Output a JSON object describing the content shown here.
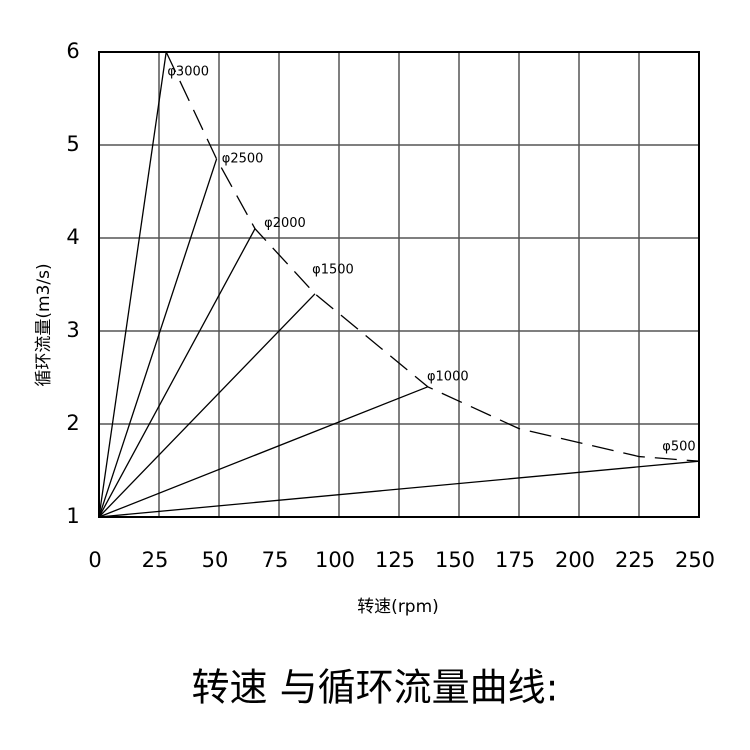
{
  "chart_data": {
    "type": "line",
    "title": "转速 与循环流量曲线:",
    "xlabel": "转速(rpm)",
    "ylabel": "循环流量(m3/s)",
    "xlim": [
      0,
      250
    ],
    "ylim": [
      1,
      6
    ],
    "xticks": [
      0,
      25,
      50,
      75,
      100,
      125,
      150,
      175,
      200,
      225,
      250
    ],
    "yticks": [
      1,
      2,
      3,
      4,
      5,
      6
    ],
    "grid": true,
    "color": "#000000",
    "series": [
      {
        "name": "φ3000",
        "x": [
          0,
          28
        ],
        "values": [
          1,
          6
        ]
      },
      {
        "name": "φ2500",
        "x": [
          0,
          49
        ],
        "values": [
          1,
          4.85
        ]
      },
      {
        "name": "φ2000",
        "x": [
          0,
          65
        ],
        "values": [
          1,
          4.1
        ]
      },
      {
        "name": "φ1500",
        "x": [
          0,
          90
        ],
        "values": [
          1,
          3.4
        ]
      },
      {
        "name": "φ1000",
        "x": [
          0,
          137
        ],
        "values": [
          1,
          2.4
        ]
      },
      {
        "name": "φ500",
        "x": [
          0,
          250
        ],
        "values": [
          1,
          1.6
        ]
      }
    ],
    "envelope": {
      "x": [
        28,
        49,
        65,
        90,
        137,
        175,
        225,
        250
      ],
      "values": [
        6,
        4.85,
        4.1,
        3.4,
        2.4,
        1.95,
        1.65,
        1.6
      ]
    }
  }
}
